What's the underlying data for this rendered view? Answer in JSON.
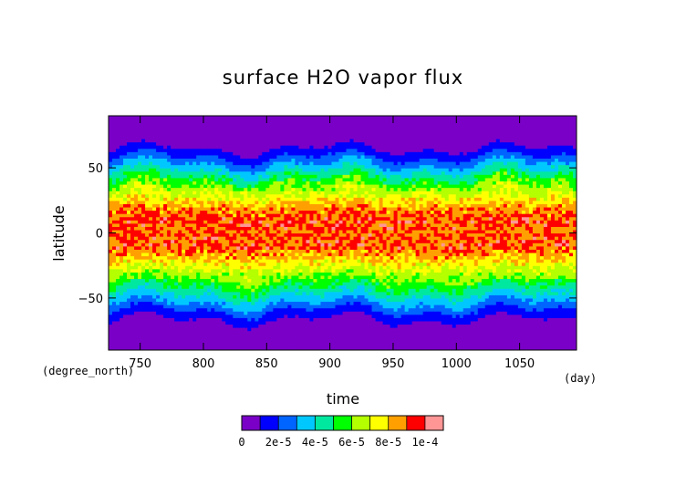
{
  "chart_data": {
    "type": "heatmap",
    "title": "surface H2O vapor flux",
    "xlabel": "time",
    "ylabel": "latitude",
    "x_unit": "(day)",
    "y_unit": "(degree_north)",
    "xlim": [
      725,
      1095
    ],
    "ylim": [
      -90,
      90
    ],
    "x_ticks": [
      750,
      800,
      850,
      900,
      950,
      1000,
      1050
    ],
    "y_ticks": [
      -50,
      0,
      50
    ],
    "x_tick_labels": [
      "750",
      "800",
      "850",
      "900",
      "950",
      "1000",
      "1050"
    ],
    "y_tick_labels": [
      "−50",
      "0",
      "50"
    ],
    "colorbar": {
      "levels": [
        0,
        1e-05,
        2e-05,
        3e-05,
        4e-05,
        5e-05,
        6e-05,
        7e-05,
        8e-05,
        9e-05,
        0.0001,
        0.00011
      ],
      "colors": [
        "#7a00c8",
        "#0000ff",
        "#0064ff",
        "#00c8ff",
        "#00e8a0",
        "#00ff00",
        "#b4ff00",
        "#ffff00",
        "#ffa000",
        "#ff0000",
        "#ff9696"
      ],
      "tick_labels": [
        "0",
        "2e-5",
        "4e-5",
        "6e-5",
        "8e-5",
        "1e-4"
      ]
    },
    "latitude_profile": [
      {
        "lat": -90,
        "value": 2e-06
      },
      {
        "lat": -80,
        "value": 3e-06
      },
      {
        "lat": -70,
        "value": 6e-06
      },
      {
        "lat": -63,
        "value": 1.4e-05
      },
      {
        "lat": -55,
        "value": 2.8e-05
      },
      {
        "lat": -48,
        "value": 4e-05
      },
      {
        "lat": -40,
        "value": 5.2e-05
      },
      {
        "lat": -30,
        "value": 6.6e-05
      },
      {
        "lat": -20,
        "value": 8e-05
      },
      {
        "lat": -10,
        "value": 9.2e-05
      },
      {
        "lat": 0,
        "value": 9e-05
      },
      {
        "lat": 10,
        "value": 9.2e-05
      },
      {
        "lat": 20,
        "value": 8.5e-05
      },
      {
        "lat": 30,
        "value": 7e-05
      },
      {
        "lat": 40,
        "value": 5.5e-05
      },
      {
        "lat": 48,
        "value": 4e-05
      },
      {
        "lat": 55,
        "value": 2.6e-05
      },
      {
        "lat": 63,
        "value": 1.2e-05
      },
      {
        "lat": 70,
        "value": 5e-06
      },
      {
        "lat": 80,
        "value": 3e-06
      },
      {
        "lat": 90,
        "value": 2e-06
      }
    ]
  }
}
